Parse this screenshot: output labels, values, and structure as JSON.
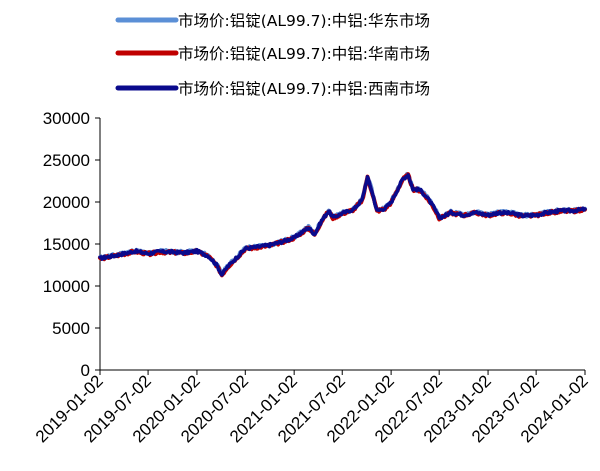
{
  "chart_data": {
    "type": "line",
    "title": "",
    "xlabel": "",
    "ylabel": "",
    "ylim": [
      0,
      30000
    ],
    "yticks": [
      0,
      5000,
      10000,
      15000,
      20000,
      25000,
      30000
    ],
    "xlim": [
      "2019-01-02",
      "2024-01-02"
    ],
    "xticks": [
      "2019-01-02",
      "2019-07-02",
      "2020-01-02",
      "2020-07-02",
      "2021-01-02",
      "2021-07-02",
      "2022-01-02",
      "2022-07-02",
      "2023-01-02",
      "2023-07-02",
      "2024-01-02"
    ],
    "grid": false,
    "legend_position": "top",
    "x": [
      "2019-01-02",
      "2019-02-15",
      "2019-04-01",
      "2019-05-15",
      "2019-07-02",
      "2019-08-15",
      "2019-10-01",
      "2019-11-15",
      "2020-01-02",
      "2020-02-15",
      "2020-03-15",
      "2020-04-05",
      "2020-04-25",
      "2020-05-20",
      "2020-07-02",
      "2020-08-15",
      "2020-10-01",
      "2020-11-15",
      "2021-01-02",
      "2021-02-25",
      "2021-03-20",
      "2021-04-15",
      "2021-05-12",
      "2021-05-28",
      "2021-07-02",
      "2021-08-15",
      "2021-09-15",
      "2021-10-05",
      "2021-10-20",
      "2021-11-10",
      "2021-12-10",
      "2022-01-02",
      "2022-02-15",
      "2022-03-07",
      "2022-03-25",
      "2022-04-20",
      "2022-05-15",
      "2022-06-10",
      "2022-07-02",
      "2022-07-15",
      "2022-08-15",
      "2022-10-01",
      "2022-11-15",
      "2023-01-02",
      "2023-02-15",
      "2023-04-01",
      "2023-05-15",
      "2023-07-02",
      "2023-08-15",
      "2023-10-01",
      "2023-11-15",
      "2024-01-02"
    ],
    "series": [
      {
        "name": "市场价:铝锭(AL99.7):中铝:华东市场",
        "color": "#5b8fd6",
        "line_width": 4,
        "values": [
          13350,
          13600,
          13900,
          14200,
          13900,
          14150,
          14100,
          14000,
          14200,
          13600,
          12600,
          11400,
          12300,
          13100,
          14500,
          14700,
          14900,
          15300,
          15800,
          17000,
          16200,
          17800,
          19000,
          18200,
          18700,
          19200,
          20300,
          23000,
          21500,
          19000,
          19300,
          20000,
          22800,
          23300,
          21600,
          21500,
          20700,
          19500,
          18200,
          18300,
          18800,
          18500,
          18800,
          18500,
          18800,
          18700,
          18400,
          18500,
          18800,
          19000,
          19000,
          19200
        ]
      },
      {
        "name": "市场价:铝锭(AL99.7):中铝:华南市场",
        "color": "#c00000",
        "line_width": 4,
        "values": [
          13250,
          13500,
          13800,
          14100,
          13800,
          14050,
          14000,
          13900,
          14100,
          13500,
          12500,
          11300,
          12200,
          13000,
          14400,
          14600,
          14800,
          15200,
          15700,
          16900,
          16100,
          17700,
          18900,
          18100,
          18600,
          19100,
          20200,
          22900,
          21400,
          18900,
          19200,
          19900,
          22700,
          23200,
          21500,
          21400,
          20600,
          19400,
          18100,
          18200,
          18700,
          18400,
          18700,
          18400,
          18700,
          18600,
          18300,
          18400,
          18700,
          18900,
          18900,
          19100
        ]
      },
      {
        "name": "市场价:铝锭(AL99.7):中铝:西南市场",
        "color": "#0a0a8c",
        "line_width": 3.5,
        "values": [
          13300,
          13550,
          13850,
          14150,
          13850,
          14100,
          14050,
          13950,
          14150,
          13550,
          12550,
          11350,
          12250,
          13050,
          14450,
          14650,
          14850,
          15250,
          15750,
          16950,
          16150,
          17750,
          18950,
          18150,
          18650,
          19150,
          20250,
          22950,
          21450,
          18950,
          19250,
          19950,
          22750,
          23250,
          21550,
          21450,
          20650,
          19450,
          18150,
          18250,
          18750,
          18450,
          18750,
          18450,
          18750,
          18650,
          18350,
          18450,
          18750,
          18950,
          18950,
          19150
        ]
      }
    ]
  }
}
